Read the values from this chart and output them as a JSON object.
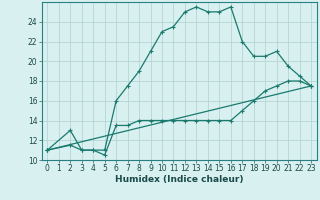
{
  "xlabel": "Humidex (Indice chaleur)",
  "bg_color": "#d8f0f0",
  "line_color": "#1a7a6e",
  "grid_color": "#b0d0d0",
  "xlim": [
    -0.5,
    23.5
  ],
  "ylim": [
    10,
    26
  ],
  "xticks": [
    0,
    1,
    2,
    3,
    4,
    5,
    6,
    7,
    8,
    9,
    10,
    11,
    12,
    13,
    14,
    15,
    16,
    17,
    18,
    19,
    20,
    21,
    22,
    23
  ],
  "yticks": [
    10,
    12,
    14,
    16,
    18,
    20,
    22,
    24
  ],
  "line1_x": [
    0,
    2,
    3,
    4,
    5,
    6,
    7,
    8,
    9,
    10,
    11,
    12,
    13,
    14,
    15,
    16,
    17,
    18,
    19,
    20,
    21,
    22,
    23
  ],
  "line1_y": [
    11,
    13,
    11,
    11,
    11,
    16,
    17.5,
    19,
    21,
    23,
    23.5,
    25,
    25.5,
    25,
    25,
    25.5,
    22,
    20.5,
    20.5,
    21,
    19.5,
    18.5,
    17.5
  ],
  "line2_x": [
    0,
    2,
    3,
    4,
    5,
    6,
    7,
    8,
    9,
    10,
    11,
    12,
    13,
    14,
    15,
    16,
    17,
    18,
    19,
    20,
    21,
    22,
    23
  ],
  "line2_y": [
    11,
    11.5,
    11,
    11,
    10.5,
    13.5,
    13.5,
    14,
    14,
    14,
    14,
    14,
    14,
    14,
    14,
    14,
    15,
    16,
    17,
    17.5,
    18,
    18,
    17.5
  ],
  "line3_x": [
    0,
    23
  ],
  "line3_y": [
    11,
    17.5
  ]
}
